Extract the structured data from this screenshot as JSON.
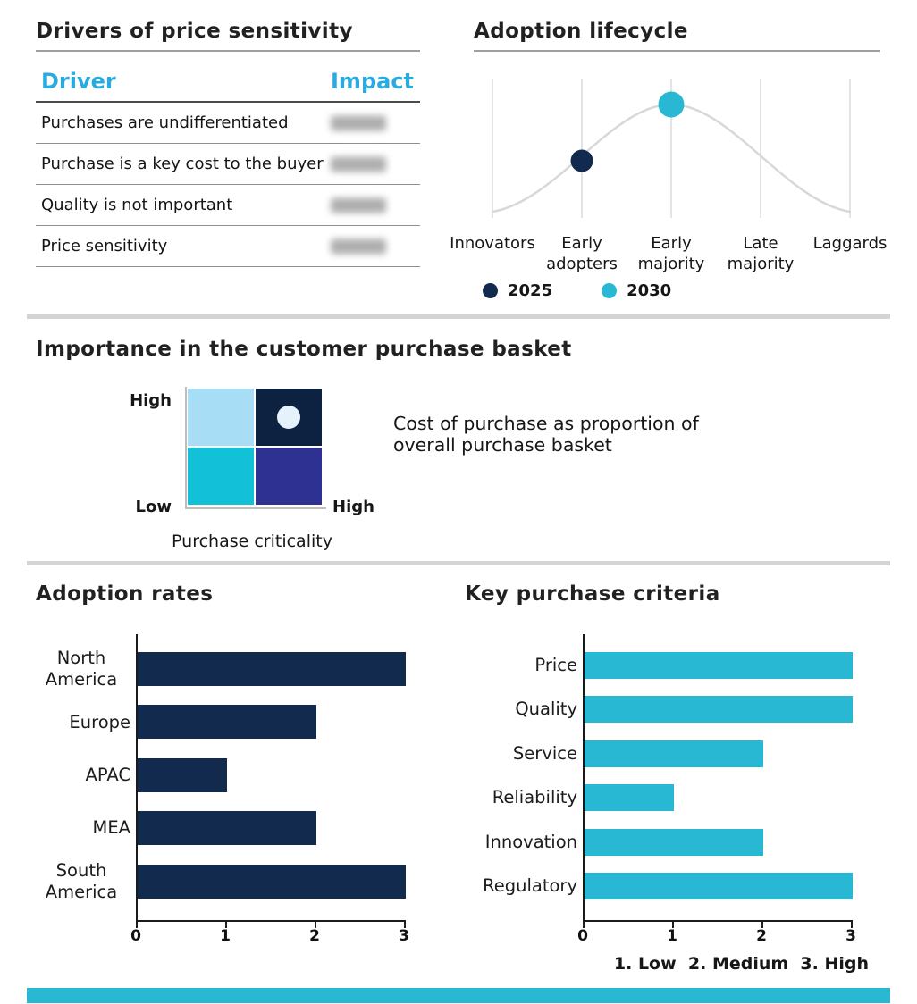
{
  "page": {
    "background": "#ffffff"
  },
  "colors": {
    "navy": "#112a4d",
    "cyan": "#29b8d4",
    "sky": "#a8ddf6",
    "indigo": "#2e3192",
    "header-cyan": "#29abe2",
    "title": "#212121",
    "text": "#1f1f1f",
    "grid": "#d4d4d4",
    "axis": "#1a1a1a",
    "divider": "#d4d4d4",
    "rule": "#9e9e9e",
    "row-line": "#8f8f8f",
    "marker": "#e6f2fb",
    "redacted": "#9a9a9a"
  },
  "chart_data": [
    {
      "name": "drivers_of_price_sensitivity",
      "type": "table",
      "title": "Drivers of price sensitivity",
      "columns": [
        "Driver",
        "Impact"
      ],
      "rows": [
        "Purchases are undifferentiated",
        "Purchase is a key cost to the buyer",
        "Quality is not important",
        "Price sensitivity"
      ],
      "impact_values_redacted": true
    },
    {
      "name": "adoption_lifecycle",
      "type": "line",
      "title": "Adoption lifecycle",
      "categories": [
        "Innovators",
        "Early adopters",
        "Early majority",
        "Late majority",
        "Laggards"
      ],
      "curve_shape": "schematic bell curve peaking at Early majority",
      "curve_relative_heights": [
        0.05,
        0.45,
        1.0,
        0.45,
        0.05
      ],
      "points": [
        {
          "label": "2025",
          "category": "Early adopters",
          "category_index": 1,
          "color": "#112a4d"
        },
        {
          "label": "2030",
          "category": "Early majority",
          "category_index": 2,
          "color": "#29b8d4"
        }
      ],
      "legend": [
        {
          "label": "2025",
          "color": "#112a4d"
        },
        {
          "label": "2030",
          "color": "#29b8d4"
        }
      ],
      "grid": "vertical gridlines at each category"
    },
    {
      "name": "importance_in_purchase_basket",
      "type": "heatmap",
      "title": "Importance in the customer purchase basket",
      "y_axis": {
        "top": "High",
        "bottom": "Low"
      },
      "x_axis": {
        "right": "High",
        "label": "Purchase criticality"
      },
      "quadrant_colors": {
        "top_left": "#a8ddf6",
        "top_right": "#0d2240",
        "bottom_left": "#12c0d8",
        "bottom_right": "#2e3192"
      },
      "marker": {
        "quadrant": "top_right",
        "color": "#e6f2fb"
      },
      "annotation": "Cost of purchase as proportion of overall purchase basket"
    },
    {
      "name": "adoption_rates",
      "type": "bar",
      "orientation": "horizontal",
      "title": "Adoption rates",
      "categories": [
        "North America",
        "Europe",
        "APAC",
        "MEA",
        "South America"
      ],
      "values": [
        3,
        2,
        1,
        2,
        3
      ],
      "xlim": [
        0,
        3
      ],
      "ticks": [
        "0",
        "1",
        "2",
        "3"
      ],
      "bar_color": "#112a4d"
    },
    {
      "name": "key_purchase_criteria",
      "type": "bar",
      "orientation": "horizontal",
      "title": "Key purchase criteria",
      "categories": [
        "Price",
        "Quality",
        "Service",
        "Reliability",
        "Innovation",
        "Regulatory"
      ],
      "values": [
        3,
        3,
        2,
        1,
        2,
        3
      ],
      "xlim": [
        0,
        3
      ],
      "ticks": [
        "0",
        "1",
        "2",
        "3"
      ],
      "bar_color": "#29b8d4",
      "scale_note": "1. Low  2. Medium  3. High"
    }
  ]
}
